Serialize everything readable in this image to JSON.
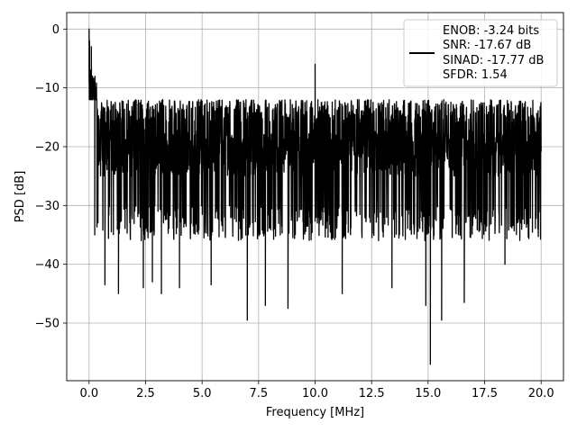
{
  "chart_data": {
    "type": "line",
    "xlabel": "Frequency [MHz]",
    "ylabel": "PSD [dB]",
    "xlim": [
      -0.99,
      20.99
    ],
    "ylim": [
      -59.8,
      2.8
    ],
    "xticks": [
      0.0,
      2.5,
      5.0,
      7.5,
      10.0,
      12.5,
      15.0,
      17.5,
      20.0
    ],
    "xtick_labels": [
      "0.0",
      "2.5",
      "5.0",
      "7.5",
      "10.0",
      "12.5",
      "15.0",
      "17.5",
      "20.0"
    ],
    "yticks": [
      0,
      -10,
      -20,
      -30,
      -40,
      -50
    ],
    "ytick_labels": [
      "0",
      "−10",
      "−20",
      "−30",
      "−40",
      "−50"
    ],
    "grid": true,
    "legend_position": "top-right",
    "line_color": "#000000",
    "series": [
      {
        "legend": [
          "ENOB: -3.24 bits",
          "SNR: -17.67 dB",
          "SINAD: -17.77 dB",
          "SFDR: 1.54"
        ],
        "noise_floor_db": [
          -30,
          -12
        ],
        "noise_mean_db": -21,
        "x": [
          0.0,
          0.02,
          0.05,
          0.1,
          0.15,
          0.2,
          0.25,
          0.3,
          0.7,
          1.3,
          2.4,
          2.8,
          3.2,
          4.0,
          5.4,
          7.0,
          7.8,
          8.8,
          10.0,
          11.2,
          13.4,
          14.9,
          15.1,
          15.6,
          16.6,
          18.4,
          20.0
        ],
        "y": [
          0.0,
          -2.0,
          -7.0,
          -3.0,
          -8.0,
          -9.0,
          -35.0,
          -11.0,
          -43.5,
          -45.0,
          -44.0,
          -43.0,
          -45.0,
          -44.0,
          -43.5,
          -49.5,
          -47.0,
          -47.5,
          -6.0,
          -45.0,
          -44.0,
          -47.0,
          -57.0,
          -49.5,
          -46.5,
          -40.0,
          -20.0
        ]
      }
    ]
  }
}
